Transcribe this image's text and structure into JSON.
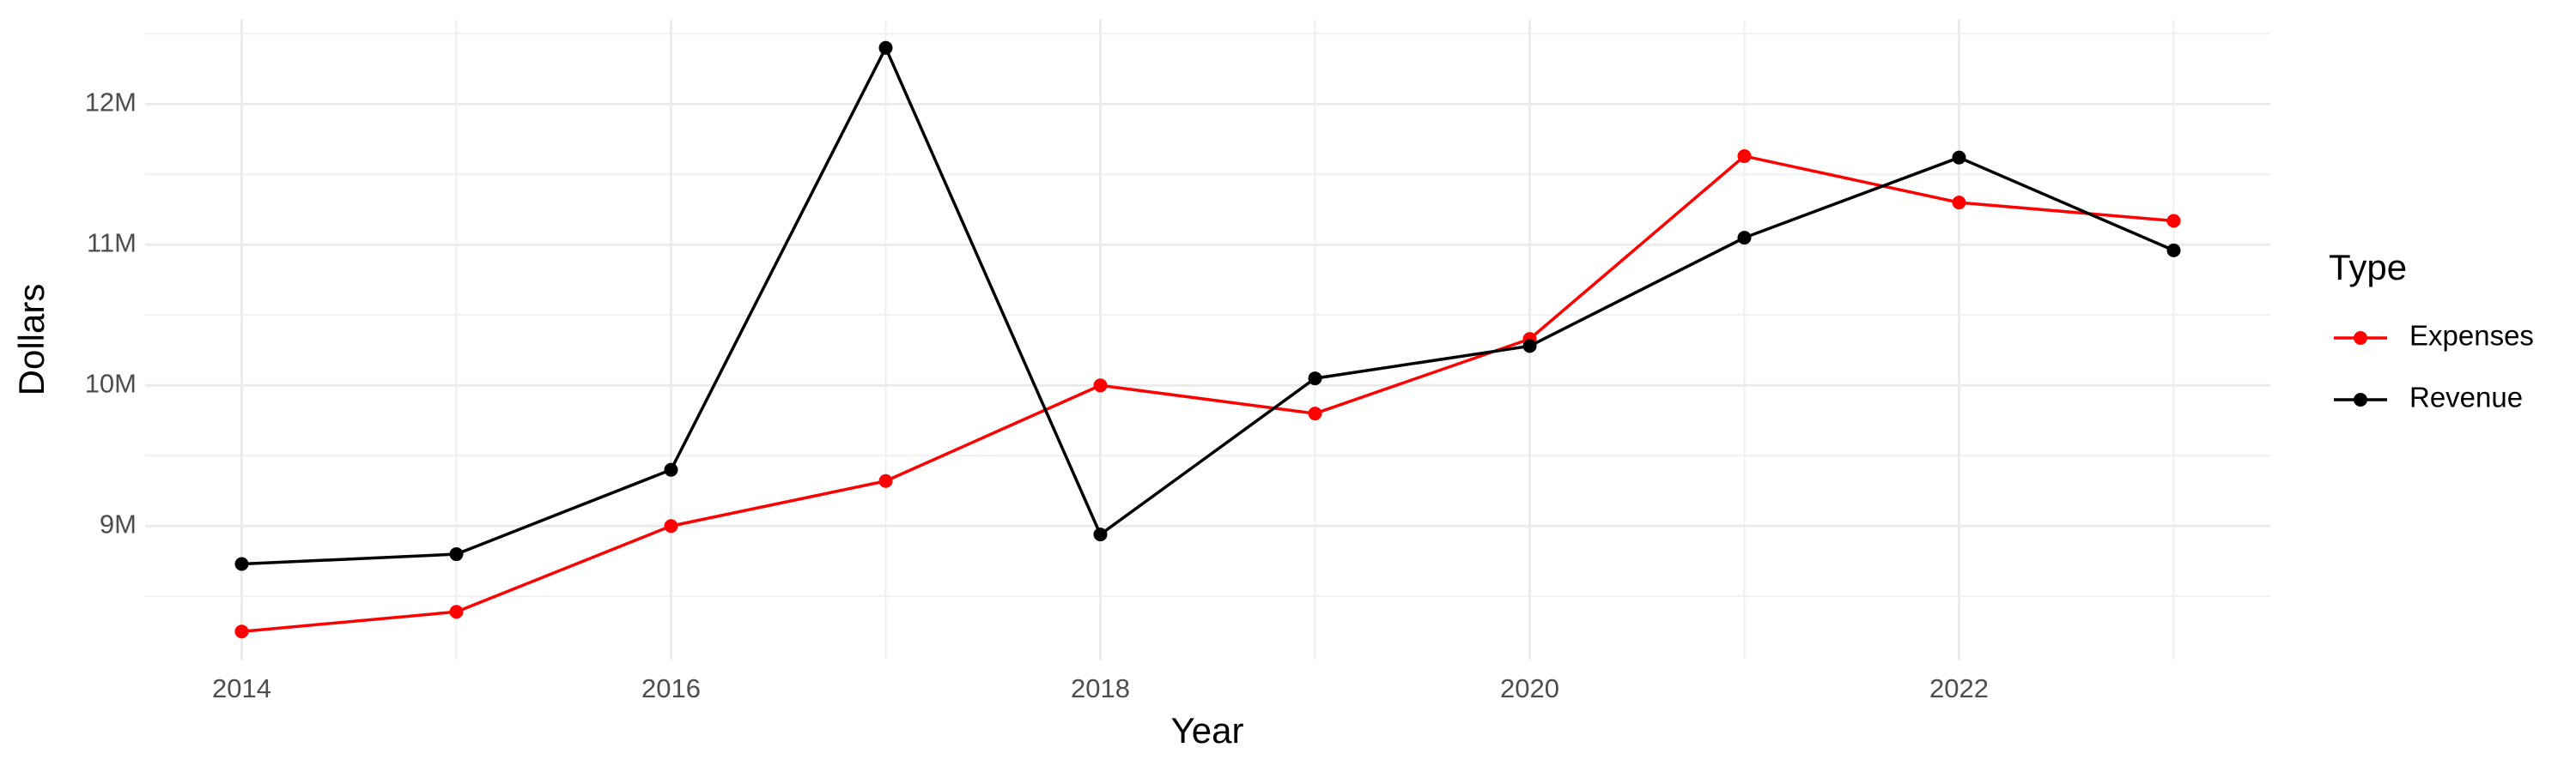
{
  "chart_data": {
    "type": "line",
    "x_label": "Year",
    "y_label": "Dollars",
    "legend_title": "Type",
    "legend": "right",
    "grid": true,
    "x": [
      2014,
      2015,
      2016,
      2017,
      2018,
      2019,
      2020,
      2021,
      2022,
      2023
    ],
    "series": [
      {
        "name": "Expenses",
        "color": "#ff0000",
        "values": [
          8250000,
          8390000,
          9000000,
          9320000,
          10000000,
          9800000,
          10330000,
          11630000,
          11300000,
          11170000
        ]
      },
      {
        "name": "Revenue",
        "color": "#000000",
        "values": [
          8730000,
          8800000,
          9400000,
          12400000,
          8940000,
          10050000,
          10280000,
          11050000,
          11620000,
          10960000
        ]
      }
    ],
    "xlim": [
      2013.55,
      2023.45
    ],
    "xticks": [
      2014,
      2016,
      2018,
      2020,
      2022
    ],
    "ylim": [
      8050000,
      12600000
    ],
    "yticks": [
      {
        "value": 9000000,
        "label": "9M"
      },
      {
        "value": 10000000,
        "label": "10M"
      },
      {
        "value": 11000000,
        "label": "11M"
      },
      {
        "value": 12000000,
        "label": "12M"
      }
    ]
  }
}
